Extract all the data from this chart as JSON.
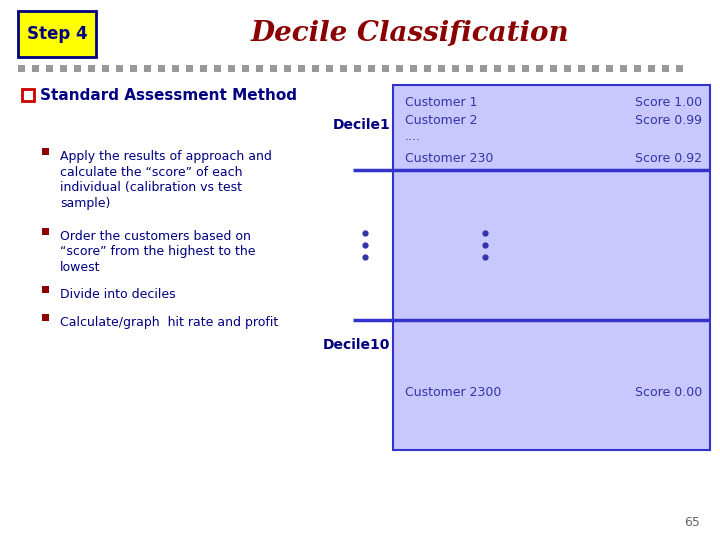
{
  "title": "Decile Classification",
  "step_label": "Step 4",
  "step_bg": "#FFFF00",
  "step_border_color": "#000080",
  "title_color": "#8B0000",
  "bg_color": "#FFFFFF",
  "dot_color": "#999999",
  "heading_color": "#000080",
  "heading_text": "Standard Assessment Method",
  "heading_bullet_color": "#CC0000",
  "bullet_color": "#8B0000",
  "bullet_text_color": "#000080",
  "bullets": [
    "Apply the results of approach and\ncalculate the “score” of each\nindividual (calibration vs test\nsample)",
    "Order the customers based on\n“score” from the highest to the\nlowest",
    "Divide into deciles",
    "Calculate/graph  hit rate and profit"
  ],
  "box_bg": "#C8C8FF",
  "box_border": "#3333CC",
  "decile1_label": "Decile1",
  "decile10_label": "Decile10",
  "decile_color": "#000080",
  "text_color": "#3333AA",
  "page_num": "65",
  "line_color": "#3333CC",
  "ellipsis_color": "#3333AA"
}
